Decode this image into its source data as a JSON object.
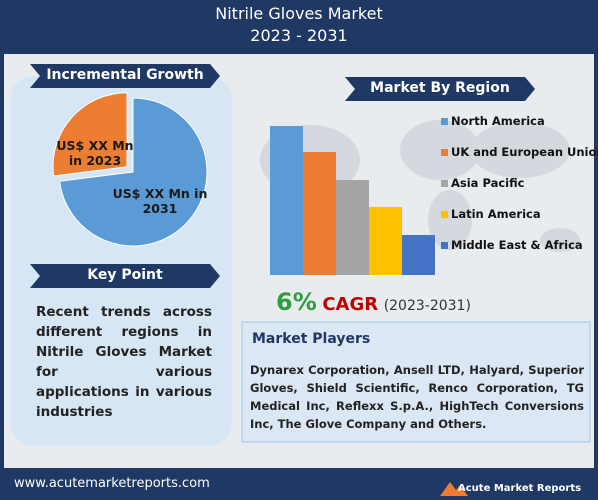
{
  "header": {
    "title": "Nitrile Gloves Market",
    "subtitle": "2023 - 2031"
  },
  "chart_data": [
    {
      "type": "pie",
      "title": "Incremental Growth",
      "categories": [
        "US$ XX Mn in 2023",
        "US$ XX Mn in 2031"
      ],
      "values": [
        27,
        73
      ],
      "colors": [
        "#ed7d31",
        "#5b9bd5"
      ]
    },
    {
      "type": "bar",
      "title": "Market By Region",
      "categories": [
        "North America",
        "UK and European Union",
        "Asia Pacific",
        "Latin America",
        "Middle East & Africa"
      ],
      "values": [
        149,
        123,
        95,
        68,
        40
      ],
      "colors": [
        "#5b9bd5",
        "#ed7d31",
        "#a5a5a5",
        "#ffc000",
        "#4472c4"
      ],
      "ylim": [
        0,
        150
      ]
    }
  ],
  "key_point": {
    "title": "Key Point",
    "text": "Recent trends across different regions in Nitrile Gloves Market for various applications in various industries"
  },
  "cagr": {
    "value": "6%",
    "label": "CAGR",
    "period": "(2023-2031)"
  },
  "market_players": {
    "title": "Market Players",
    "text": "Dynarex Corporation, Ansell LTD, Halyard, Superior Gloves, Shield Scientific, Renco Corporation, TG Medical Inc, Reflexx S.p.A., HighTech Conversions Inc, The Glove Company and Others."
  },
  "footer": {
    "url": "www.acutemarketreports.com",
    "logo": "Acute Market Reports"
  }
}
